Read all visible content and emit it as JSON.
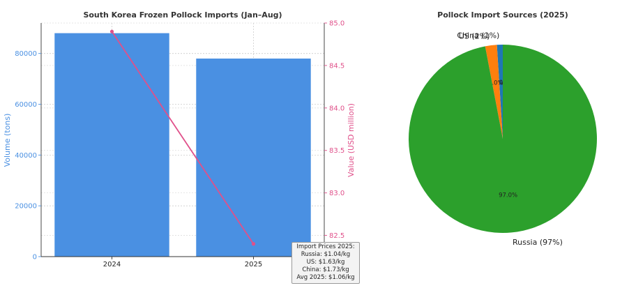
{
  "chart_data": [
    {
      "type": "bar",
      "title": "South Korea Frozen Pollock Imports (Jan–Aug)",
      "categories": [
        "2024",
        "2025"
      ],
      "series": [
        {
          "axis": "left",
          "type": "bar",
          "values": [
            88000,
            78000
          ]
        },
        {
          "axis": "right",
          "type": "line",
          "values": [
            84.9,
            82.4
          ]
        }
      ],
      "ylabel": "Volume (tons)",
      "ylim": [
        0,
        92000
      ],
      "yticks": [
        0,
        20000,
        40000,
        60000,
        80000
      ],
      "y2label": "Value (USD million)",
      "y2lim": [
        82.25,
        85.0
      ],
      "y2ticks": [
        "82.5",
        "83.0",
        "83.5",
        "84.0",
        "84.5",
        "85.0"
      ],
      "grid": true,
      "colors": {
        "bar": "#4a90e2",
        "line": "#e0508a",
        "left_axis": "#4a90e2",
        "right_axis": "#e0508a"
      },
      "annotation": {
        "lines": [
          "Import Prices 2025:",
          "Russia: $1.04/kg",
          "US: $1.63/kg",
          "China: $1.73/kg",
          "Avg 2025: $1.06/kg"
        ]
      }
    },
    {
      "type": "pie",
      "title": "Pollock Import Sources (2025)",
      "slices": [
        {
          "label": "China (1%)",
          "value": 1.0,
          "pct_label": "1.0%",
          "color": "#1f77b4"
        },
        {
          "label": "US (2%)",
          "value": 2.0,
          "pct_label": "2.0%",
          "color": "#ff7f0e"
        },
        {
          "label": "Russia (97%)",
          "value": 97.0,
          "pct_label": "97.0%",
          "color": "#2ca02c"
        }
      ]
    }
  ]
}
